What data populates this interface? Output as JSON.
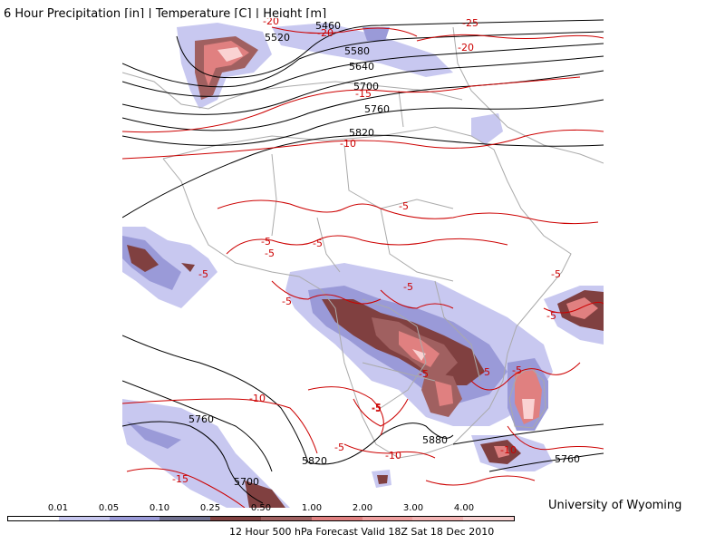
{
  "title": "6 Hour Precipitation [in] | Temperature [C] | Height [m]",
  "credit": "University of Wyoming",
  "footer": "12 Hour 500 hPa Forecast Valid 18Z Sat 18 Dec 2010",
  "legend": {
    "labels": [
      "0.01",
      "0.05",
      "0.10",
      "0.25",
      "0.50",
      "1.00",
      "2.00",
      "3.00",
      "4.00"
    ],
    "colors": [
      "#ffffff",
      "#c8c8f0",
      "#9a9ad8",
      "#707090",
      "#804040",
      "#a06060",
      "#e08080",
      "#f0a0a0",
      "#f5b5b5",
      "#fad2d2"
    ]
  },
  "colors": {
    "height_contour": "#000000",
    "temp_contour": "#cc0000",
    "borders": "#aaaaaa"
  },
  "height_labels": [
    "5460",
    "5520",
    "5580",
    "5640",
    "5700",
    "5760",
    "5820",
    "5760",
    "5820",
    "5880",
    "5700",
    "5760"
  ],
  "temp_labels": [
    "-25",
    "-20",
    "-20",
    "-20",
    "-15",
    "-10",
    "-5",
    "-5",
    "-5",
    "-5",
    "-5",
    "-5",
    "-5",
    "-5",
    "-5",
    "-5",
    "-5",
    "-5",
    "-5",
    "-10",
    "-10",
    "-10",
    "-5",
    "-5",
    "-15"
  ]
}
